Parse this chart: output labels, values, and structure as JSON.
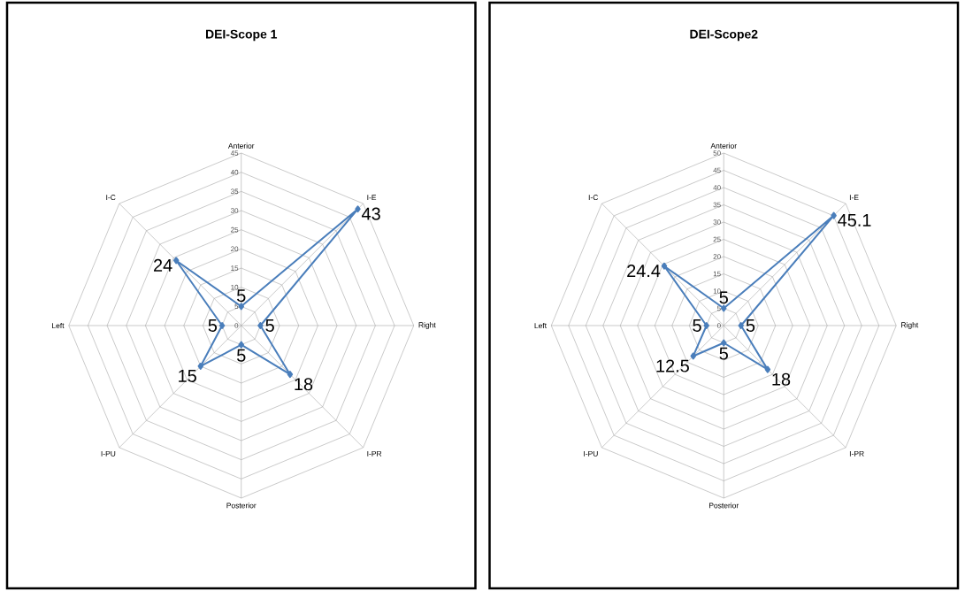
{
  "chart_data": [
    {
      "type": "radar",
      "title": "DEI-Scope 1",
      "categories": [
        "Anterior",
        "I-E",
        "Right",
        "I-PR",
        "Posterior",
        "I-PU",
        "Left",
        "I-C"
      ],
      "series": [
        {
          "color": "#4a7ebb",
          "values": [
            5,
            43,
            5,
            18,
            5,
            15,
            5,
            24
          ]
        }
      ],
      "ylim": [
        0,
        45
      ],
      "yticks": [
        0,
        5,
        10,
        15,
        20,
        25,
        30,
        35,
        40,
        45
      ],
      "grid": true,
      "marker": "diamond",
      "line_style": "solid",
      "data_labels": true
    },
    {
      "type": "radar",
      "title": "DEI-Scope2",
      "categories": [
        "Anterior",
        "I-E",
        "Right",
        "I-PR",
        "Posterior",
        "I-PU",
        "Left",
        "I-C"
      ],
      "series": [
        {
          "color": "#4a7ebb",
          "values": [
            5,
            45.1,
            5,
            18,
            5,
            12.5,
            5,
            24.4
          ]
        }
      ],
      "ylim": [
        0,
        50
      ],
      "yticks": [
        0,
        5,
        10,
        15,
        20,
        25,
        30,
        35,
        40,
        45,
        50
      ],
      "grid": true,
      "marker": "diamond",
      "line_style": "solid",
      "data_labels": true
    }
  ]
}
